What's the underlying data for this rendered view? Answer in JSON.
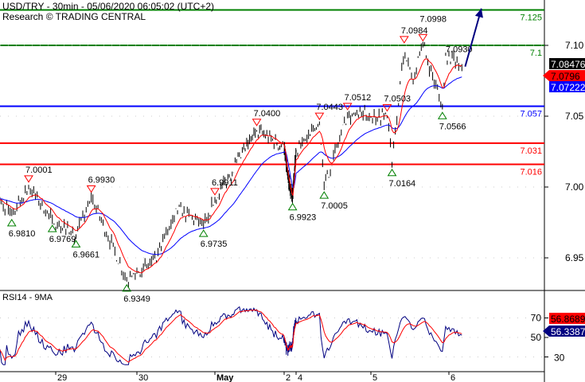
{
  "header": {
    "title": "USD/TRY - 30min - 05/06/2020 06:05:02 (UTC+2)",
    "source": "Research © TRADING CENTRAL"
  },
  "chart_data": [
    {
      "type": "line",
      "panel": "price",
      "ylim": [
        6.93,
        7.13
      ],
      "y_ticks": [
        "7.10",
        "7.05",
        "7.00",
        "6.95"
      ],
      "x_ticks": [
        "29",
        "30",
        "May",
        "2",
        "4",
        "5",
        "6"
      ],
      "x_tick_dates": [
        "2020-04-29",
        "2020-04-30",
        "2020-05-01",
        "2020-05-02",
        "2020-05-04",
        "2020-05-05",
        "2020-05-06"
      ],
      "levels": [
        {
          "value": 7.125,
          "label": "7.125",
          "color": "#008000"
        },
        {
          "value": 7.1,
          "label": "7.1",
          "color": "#008000"
        },
        {
          "value": 7.057,
          "label": "7.057",
          "color": "#0000ff"
        },
        {
          "value": 7.031,
          "label": "7.031",
          "color": "#ff0000"
        },
        {
          "value": 7.016,
          "label": "7.016",
          "color": "#ff0000"
        }
      ],
      "pivots": [
        {
          "time": "2020-04-28 06:00",
          "value": 6.992
        },
        {
          "time": "2020-04-28 11:00",
          "value": 6.981,
          "label": "6.9810",
          "kind": "low"
        },
        {
          "time": "2020-04-28 16:00",
          "value": 7.0001,
          "label": "7.0001",
          "kind": "high"
        },
        {
          "time": "2020-04-28 23:00",
          "value": 6.9769,
          "label": "6.9769",
          "kind": "low"
        },
        {
          "time": "2020-04-29 06:00",
          "value": 6.9661,
          "label": "6.9661",
          "kind": "low"
        },
        {
          "time": "2020-04-29 10:30",
          "value": 6.993,
          "label": "6.9930",
          "kind": "high"
        },
        {
          "time": "2020-04-29 21:00",
          "value": 6.9349,
          "label": "6.9349",
          "kind": "low"
        },
        {
          "time": "2020-04-30 06:00",
          "value": 6.948
        },
        {
          "time": "2020-04-30 12:00",
          "value": 6.985
        },
        {
          "time": "2020-04-30 20:30",
          "value": 6.9735,
          "label": "6.9735",
          "kind": "low"
        },
        {
          "time": "2020-05-01 00:00",
          "value": 6.9911,
          "label": "6.9911",
          "kind": "high"
        },
        {
          "time": "2020-05-01 14:30",
          "value": 7.04,
          "label": "7.0400",
          "kind": "high"
        },
        {
          "time": "2020-05-02 18:00",
          "value": 7.005
        },
        {
          "time": "2020-05-03 10:00",
          "value": 6.9923,
          "label": "6.9923",
          "kind": "low"
        },
        {
          "time": "2020-05-04 07:30",
          "value": 7.0443,
          "label": "7.0443",
          "kind": "high"
        },
        {
          "time": "2020-05-04 09:00",
          "value": 7.0005,
          "label": "7.0005",
          "kind": "low"
        },
        {
          "time": "2020-05-04 16:30",
          "value": 7.0512,
          "label": "7.0512",
          "kind": "high"
        },
        {
          "time": "2020-05-05 05:00",
          "value": 7.0503,
          "label": "7.0503",
          "kind": "high"
        },
        {
          "time": "2020-05-05 06:30",
          "value": 7.0164,
          "label": "7.0164",
          "kind": "low"
        },
        {
          "time": "2020-05-05 10:15",
          "value": 7.0984,
          "label": "7.0984",
          "kind": "high"
        },
        {
          "time": "2020-05-05 13:00",
          "value": 7.075
        },
        {
          "time": "2020-05-05 16:00",
          "value": 7.0998,
          "label": "7.0998",
          "kind": "high"
        },
        {
          "time": "2020-05-05 22:00",
          "value": 7.0566,
          "label": "7.0566",
          "kind": "low"
        },
        {
          "time": "2020-05-05 23:00",
          "value": 7.093,
          "label": "7.0930",
          "kind": "text"
        },
        {
          "time": "2020-05-06 04:00",
          "value": 7.08476
        }
      ],
      "last_price": {
        "label": "7.08476",
        "color": "#000000"
      },
      "ma_fast": {
        "label": "7.0796",
        "color": "#ff0000"
      },
      "ma_slow": {
        "label": "7.07222",
        "color": "#0000ff"
      },
      "forecast_arrow": {
        "from": [
          "2020-05-06 05:00",
          7.085
        ],
        "to": [
          "2020-05-06 10:00",
          7.126
        ],
        "color": "#000080"
      }
    },
    {
      "type": "line",
      "panel": "indicator",
      "title": "RSI14 - 9MA",
      "ylim": [
        20,
        95
      ],
      "y_ticks": [
        "70",
        "50",
        "30"
      ],
      "rsi": {
        "label": "56.3387",
        "color": "#000080"
      },
      "rsi_ma": {
        "label": "56.8689",
        "color": "#ff0000"
      }
    }
  ]
}
